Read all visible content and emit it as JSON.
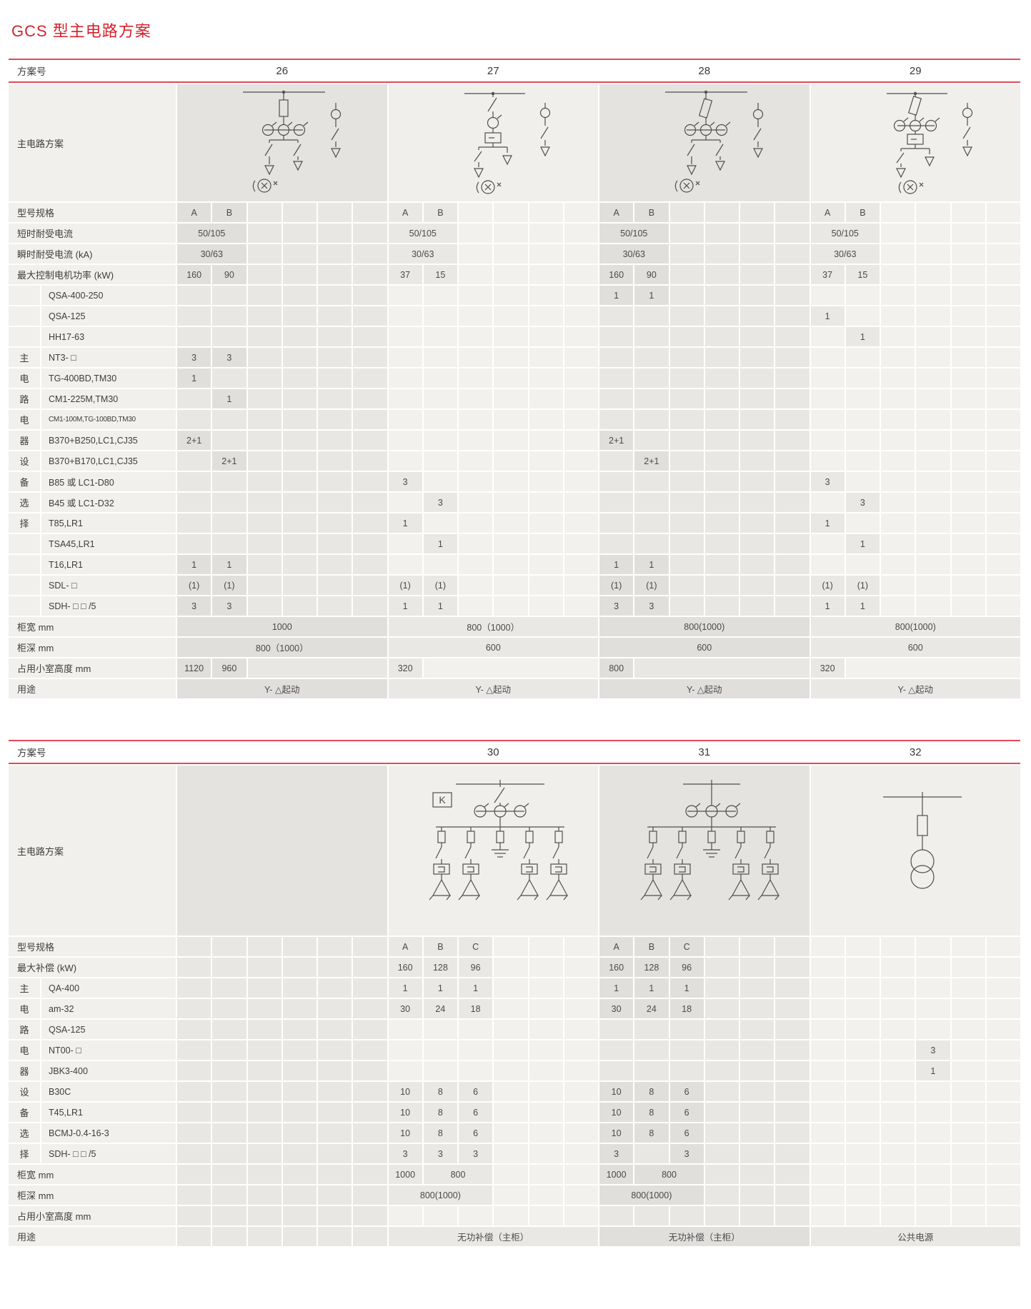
{
  "title": "GCS 型主电路方案",
  "colors": {
    "title_red": "#d4232e",
    "rule_red": "#e04b58",
    "cell_dark": "#e9e7e4",
    "cell_light": "#f2f1ee",
    "label_bg": "#f1f0ed",
    "text": "#3d3d3d"
  },
  "tables": [
    {
      "plan_label": "方案号",
      "diagram_label": "主电路方案",
      "group_label": "主电路电器设备选择",
      "schemes": [
        "26",
        "27",
        "28",
        "29"
      ],
      "shades": [
        "dark",
        "light",
        "dark",
        "light"
      ],
      "diagrams": [
        "d26",
        "d27",
        "d28",
        "d29"
      ],
      "rows": [
        {
          "label": "型号规格",
          "cells": [
            [
              "A",
              "B"
            ],
            [
              "A",
              "B"
            ],
            [
              "A",
              "B"
            ],
            [
              "A",
              "B"
            ]
          ]
        },
        {
          "label": "短时耐受电流",
          "cells": [
            [
              {
                "v": "50/105",
                "cs": 2
              }
            ],
            [
              {
                "v": "50/105",
                "cs": 2
              }
            ],
            [
              {
                "v": "50/105",
                "cs": 2
              }
            ],
            [
              {
                "v": "50/105",
                "cs": 2
              }
            ]
          ]
        },
        {
          "label": "瞬时耐受电流 (kA)",
          "cells": [
            [
              {
                "v": "30/63",
                "cs": 2
              }
            ],
            [
              {
                "v": "30/63",
                "cs": 2
              }
            ],
            [
              {
                "v": "30/63",
                "cs": 2
              }
            ],
            [
              {
                "v": "30/63",
                "cs": 2
              }
            ]
          ]
        },
        {
          "label": "最大控制电机功率 (kW)",
          "cells": [
            [
              "160",
              "90"
            ],
            [
              "37",
              "15"
            ],
            [
              "160",
              "90"
            ],
            [
              "37",
              "15"
            ]
          ]
        },
        {
          "label": "QSA-400-250",
          "group": true,
          "cells": [
            [],
            [],
            [
              "1",
              "1"
            ],
            []
          ]
        },
        {
          "label": "QSA-125",
          "group": true,
          "cells": [
            [],
            [],
            [],
            [
              "1"
            ]
          ]
        },
        {
          "label": "HH17-63",
          "group": true,
          "cells": [
            [],
            [],
            [],
            [
              "",
              "1"
            ]
          ]
        },
        {
          "label": "NT3- □",
          "group": true,
          "g": "主",
          "cells": [
            [
              "3",
              "3"
            ],
            [],
            [],
            []
          ]
        },
        {
          "label": "TG-400BD,TM30",
          "group": true,
          "g": "电",
          "cells": [
            [
              "1"
            ],
            [],
            [],
            []
          ]
        },
        {
          "label": "CM1-225M,TM30",
          "group": true,
          "g": "路",
          "cells": [
            [
              "",
              "1"
            ],
            [],
            [],
            []
          ]
        },
        {
          "label": "CM1-100M,TG-100BD,TM30",
          "group": true,
          "g": "电",
          "cells": [
            [],
            [],
            [],
            []
          ]
        },
        {
          "label": "B370+B250,LC1,CJ35",
          "group": true,
          "g": "器",
          "cells": [
            [
              "2+1"
            ],
            [],
            [
              "2+1"
            ],
            []
          ]
        },
        {
          "label": "B370+B170,LC1,CJ35",
          "group": true,
          "g": "设",
          "cells": [
            [
              "",
              "2+1"
            ],
            [],
            [
              "",
              "2+1"
            ],
            []
          ]
        },
        {
          "label": "B85 或 LC1-D80",
          "group": true,
          "g": "备",
          "cells": [
            [],
            [
              "3"
            ],
            [],
            [
              "3"
            ]
          ]
        },
        {
          "label": "B45 或 LC1-D32",
          "group": true,
          "g": "选",
          "cells": [
            [],
            [
              "",
              "3"
            ],
            [],
            [
              "",
              "3"
            ]
          ]
        },
        {
          "label": "T85,LR1",
          "group": true,
          "g": "择",
          "cells": [
            [],
            [
              "1"
            ],
            [],
            [
              "1"
            ]
          ]
        },
        {
          "label": "TSA45,LR1",
          "group": true,
          "cells": [
            [],
            [
              "",
              "1"
            ],
            [],
            [
              "",
              "1"
            ]
          ]
        },
        {
          "label": "T16,LR1",
          "group": true,
          "cells": [
            [
              "1",
              "1"
            ],
            [],
            [
              "1",
              "1"
            ],
            []
          ]
        },
        {
          "label": "SDL- □",
          "group": true,
          "cells": [
            [
              "(1)",
              "(1)"
            ],
            [
              "(1)",
              "(1)"
            ],
            [
              "(1)",
              "(1)"
            ],
            [
              "(1)",
              "(1)"
            ]
          ]
        },
        {
          "label": "SDH- □ □ /5",
          "group": true,
          "cells": [
            [
              "3",
              "3"
            ],
            [
              "1",
              "1"
            ],
            [
              "3",
              "3"
            ],
            [
              "1",
              "1"
            ]
          ]
        },
        {
          "label": "柜宽 mm",
          "cells": [
            [
              {
                "v": "1000",
                "cs": 6
              }
            ],
            [
              {
                "v": "800（1000）",
                "cs": 6
              }
            ],
            [
              {
                "v": "800(1000)",
                "cs": 6
              }
            ],
            [
              {
                "v": "800(1000)",
                "cs": 6
              }
            ]
          ]
        },
        {
          "label": "柜深 mm",
          "cells": [
            [
              {
                "v": "800（1000）",
                "cs": 6
              }
            ],
            [
              {
                "v": "600",
                "cs": 6
              }
            ],
            [
              {
                "v": "600",
                "cs": 6
              }
            ],
            [
              {
                "v": "600",
                "cs": 6
              }
            ]
          ]
        },
        {
          "label": "占用小室高度 mm",
          "cells": [
            [
              "1120",
              "960",
              {
                "v": "",
                "cs": 4
              }
            ],
            [
              "320",
              {
                "v": "",
                "cs": 5
              }
            ],
            [
              "800",
              {
                "v": "",
                "cs": 5
              }
            ],
            [
              "320",
              {
                "v": "",
                "cs": 5
              }
            ]
          ]
        },
        {
          "label": "用途",
          "cells": [
            [
              {
                "v": "Y- △起动",
                "cs": 6
              }
            ],
            [
              {
                "v": "Y- △起动",
                "cs": 6
              }
            ],
            [
              {
                "v": "Y- △起动",
                "cs": 6
              }
            ],
            [
              {
                "v": "Y- △起动",
                "cs": 6
              }
            ]
          ]
        }
      ]
    },
    {
      "plan_label": "方案号",
      "diagram_label": "主电路方案",
      "group_label": "主电路电器设备选择",
      "schemes": [
        "",
        "30",
        "31",
        "32"
      ],
      "shades": [
        "dark",
        "light",
        "dark",
        "light"
      ],
      "diagrams": [
        null,
        "d30",
        "d31",
        "d32"
      ],
      "rows": [
        {
          "label": "型号规格",
          "cells": [
            [],
            [
              "A",
              "B",
              "C"
            ],
            [
              "A",
              "B",
              "C"
            ],
            []
          ]
        },
        {
          "label": "最大补偿 (kW)",
          "cells": [
            [],
            [
              "160",
              "128",
              "96"
            ],
            [
              "160",
              "128",
              "96"
            ],
            []
          ]
        },
        {
          "label": "QA-400",
          "group": true,
          "g": "主",
          "cells": [
            [],
            [
              "1",
              "1",
              "1"
            ],
            [
              "1",
              "1",
              "1"
            ],
            []
          ]
        },
        {
          "label": "am-32",
          "group": true,
          "g": "电",
          "cells": [
            [],
            [
              "30",
              "24",
              "18"
            ],
            [
              "30",
              "24",
              "18"
            ],
            []
          ]
        },
        {
          "label": "QSA-125",
          "group": true,
          "g": "路",
          "cells": [
            [],
            [],
            [],
            []
          ]
        },
        {
          "label": "NT00- □",
          "group": true,
          "g": "电",
          "cells": [
            [],
            [],
            [],
            [
              "",
              "",
              "",
              "3"
            ]
          ]
        },
        {
          "label": "JBK3-400",
          "group": true,
          "g": "器",
          "cells": [
            [],
            [],
            [],
            [
              "",
              "",
              "",
              "1"
            ]
          ]
        },
        {
          "label": "B30C",
          "group": true,
          "g": "设",
          "cells": [
            [],
            [
              "10",
              "8",
              "6"
            ],
            [
              "10",
              "8",
              "6"
            ],
            []
          ]
        },
        {
          "label": "T45,LR1",
          "group": true,
          "g": "备",
          "cells": [
            [],
            [
              "10",
              "8",
              "6"
            ],
            [
              "10",
              "8",
              "6"
            ],
            []
          ]
        },
        {
          "label": "BCMJ-0.4-16-3",
          "group": true,
          "g": "选",
          "cells": [
            [],
            [
              "10",
              "8",
              "6"
            ],
            [
              "10",
              "8",
              "6"
            ],
            []
          ]
        },
        {
          "label": "SDH- □ □ /5",
          "group": true,
          "g": "择",
          "cells": [
            [],
            [
              "3",
              "3",
              "3"
            ],
            [
              "3",
              "",
              "3"
            ],
            []
          ]
        },
        {
          "label": "柜宽 mm",
          "cells": [
            [],
            [
              "1000",
              {
                "v": "800",
                "cs": 2
              }
            ],
            [
              "1000",
              {
                "v": "800",
                "cs": 2
              }
            ],
            []
          ]
        },
        {
          "label": "柜深 mm",
          "cells": [
            [],
            [
              {
                "v": "800(1000)",
                "cs": 3
              }
            ],
            [
              {
                "v": "800(1000)",
                "cs": 3
              }
            ],
            []
          ]
        },
        {
          "label": "占用小室高度 mm",
          "cells": [
            [],
            [],
            [],
            []
          ]
        },
        {
          "label": "用途",
          "cells": [
            [],
            [
              {
                "v": "无功补偿（主柜）",
                "cs": 6
              }
            ],
            [
              {
                "v": "无功补偿（主柜）",
                "cs": 6
              }
            ],
            [
              {
                "v": "公共电源",
                "cs": 6
              }
            ]
          ]
        }
      ]
    }
  ]
}
